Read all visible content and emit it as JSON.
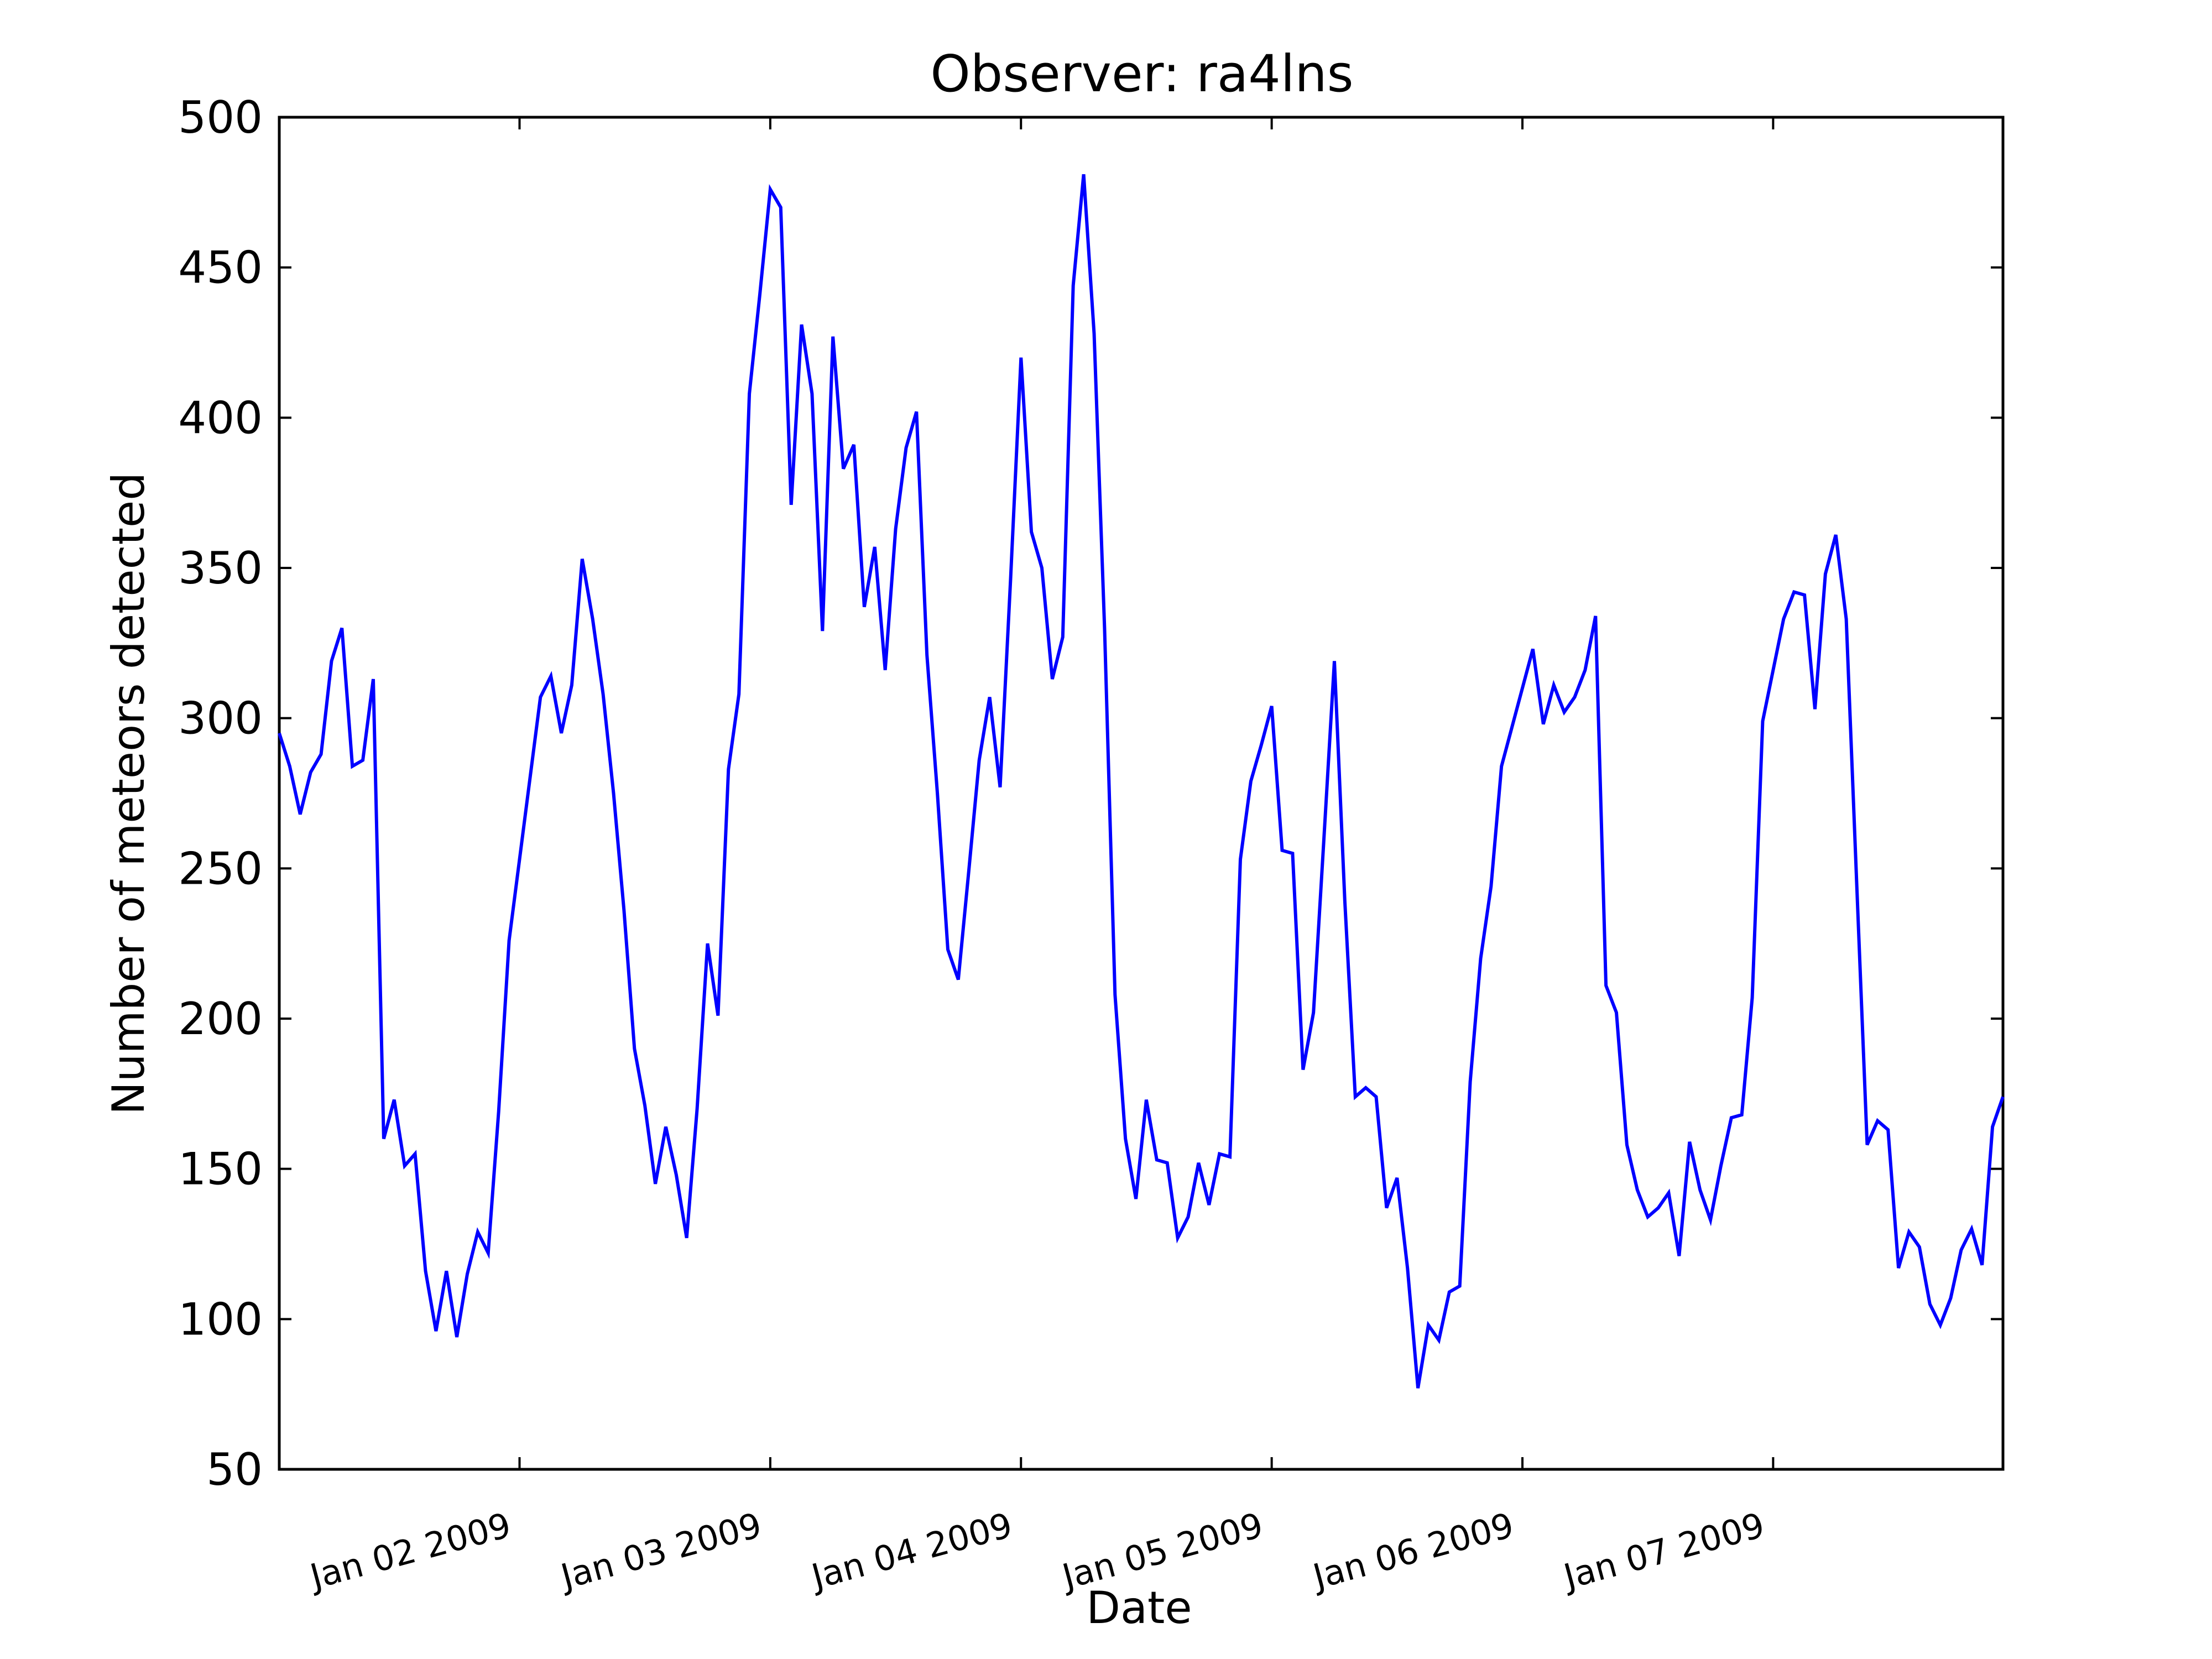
{
  "chart_data": {
    "type": "line",
    "title": "Observer: ra4lns",
    "xlabel": "Date",
    "ylabel": "Number of meteors detected",
    "ylim": [
      50,
      500
    ],
    "xlim": [
      "2009-01-01T01:00",
      "2009-01-07T22:00"
    ],
    "yticks": [
      50,
      100,
      150,
      200,
      250,
      300,
      350,
      400,
      450,
      500
    ],
    "xticks": [
      {
        "date": "2009-01-02",
        "label": "Jan 02 2009"
      },
      {
        "date": "2009-01-03",
        "label": "Jan 03 2009"
      },
      {
        "date": "2009-01-04",
        "label": "Jan 04 2009"
      },
      {
        "date": "2009-01-05",
        "label": "Jan 05 2009"
      },
      {
        "date": "2009-01-06",
        "label": "Jan 06 2009"
      },
      {
        "date": "2009-01-07",
        "label": "Jan 07 2009"
      }
    ],
    "grid": false,
    "line_color": "#0000ff",
    "series": [
      {
        "x": [
          "2009-01-01T01:00",
          "2009-01-01T02:00",
          "2009-01-01T03:00",
          "2009-01-01T04:00",
          "2009-01-01T05:00",
          "2009-01-01T06:00",
          "2009-01-01T07:00",
          "2009-01-01T08:00",
          "2009-01-01T09:00",
          "2009-01-01T10:00",
          "2009-01-01T11:00",
          "2009-01-01T12:00",
          "2009-01-01T13:00",
          "2009-01-01T14:00",
          "2009-01-01T15:00",
          "2009-01-01T16:00",
          "2009-01-01T17:00",
          "2009-01-01T18:00",
          "2009-01-01T19:00",
          "2009-01-01T20:00",
          "2009-01-01T21:00",
          "2009-01-01T22:00",
          "2009-01-01T23:00",
          "2009-01-02T02:00",
          "2009-01-02T03:00",
          "2009-01-02T04:00",
          "2009-01-02T05:00",
          "2009-01-02T06:00",
          "2009-01-02T07:00",
          "2009-01-02T08:00",
          "2009-01-02T09:00",
          "2009-01-02T10:00",
          "2009-01-02T11:00",
          "2009-01-02T12:00",
          "2009-01-02T13:00",
          "2009-01-02T14:00",
          "2009-01-02T15:00",
          "2009-01-02T16:00",
          "2009-01-02T17:00",
          "2009-01-02T18:00",
          "2009-01-02T19:00",
          "2009-01-02T20:00",
          "2009-01-02T21:00",
          "2009-01-02T22:00",
          "2009-01-02T23:00",
          "2009-01-03T00:00",
          "2009-01-03T01:00",
          "2009-01-03T02:00",
          "2009-01-03T03:00",
          "2009-01-03T04:00",
          "2009-01-03T05:00",
          "2009-01-03T06:00",
          "2009-01-03T07:00",
          "2009-01-03T08:00",
          "2009-01-03T09:00",
          "2009-01-03T10:00",
          "2009-01-03T11:00",
          "2009-01-03T12:00",
          "2009-01-03T13:00",
          "2009-01-03T14:00",
          "2009-01-03T15:00",
          "2009-01-03T16:00",
          "2009-01-03T17:00",
          "2009-01-03T18:00",
          "2009-01-03T19:00",
          "2009-01-03T20:00",
          "2009-01-03T21:00",
          "2009-01-03T22:00",
          "2009-01-03T23:00",
          "2009-01-04T00:00",
          "2009-01-04T01:00",
          "2009-01-04T02:00",
          "2009-01-04T03:00",
          "2009-01-04T04:00",
          "2009-01-04T05:00",
          "2009-01-04T06:00",
          "2009-01-04T07:00",
          "2009-01-04T08:00",
          "2009-01-04T09:00",
          "2009-01-04T10:00",
          "2009-01-04T11:00",
          "2009-01-04T12:00",
          "2009-01-04T13:00",
          "2009-01-04T14:00",
          "2009-01-04T15:00",
          "2009-01-04T16:00",
          "2009-01-04T17:00",
          "2009-01-04T18:00",
          "2009-01-04T19:00",
          "2009-01-04T20:00",
          "2009-01-04T21:00",
          "2009-01-04T22:00",
          "2009-01-04T23:00",
          "2009-01-05T00:00",
          "2009-01-05T01:00",
          "2009-01-05T02:00",
          "2009-01-05T03:00",
          "2009-01-05T04:00",
          "2009-01-05T05:00",
          "2009-01-05T06:00",
          "2009-01-05T07:00",
          "2009-01-05T08:00",
          "2009-01-05T09:00",
          "2009-01-05T10:00",
          "2009-01-05T11:00",
          "2009-01-05T12:00",
          "2009-01-05T13:00",
          "2009-01-05T14:00",
          "2009-01-05T15:00",
          "2009-01-05T16:00",
          "2009-01-05T17:00",
          "2009-01-05T18:00",
          "2009-01-05T19:00",
          "2009-01-05T20:00",
          "2009-01-05T21:00",
          "2009-01-05T22:00",
          "2009-01-06T01:00",
          "2009-01-06T02:00",
          "2009-01-06T03:00",
          "2009-01-06T04:00",
          "2009-01-06T05:00",
          "2009-01-06T06:00",
          "2009-01-06T07:00",
          "2009-01-06T08:00",
          "2009-01-06T09:00",
          "2009-01-06T10:00",
          "2009-01-06T11:00",
          "2009-01-06T12:00",
          "2009-01-06T13:00",
          "2009-01-06T14:00",
          "2009-01-06T15:00",
          "2009-01-06T16:00",
          "2009-01-06T17:00",
          "2009-01-06T18:00",
          "2009-01-06T19:00",
          "2009-01-06T20:00",
          "2009-01-06T21:00",
          "2009-01-06T22:00",
          "2009-01-06T23:00",
          "2009-01-07T00:00",
          "2009-01-07T01:00",
          "2009-01-07T02:00",
          "2009-01-07T03:00",
          "2009-01-07T04:00",
          "2009-01-07T05:00",
          "2009-01-07T06:00",
          "2009-01-07T07:00",
          "2009-01-07T08:00",
          "2009-01-07T09:00",
          "2009-01-07T10:00",
          "2009-01-07T11:00",
          "2009-01-07T12:00",
          "2009-01-07T13:00",
          "2009-01-07T14:00",
          "2009-01-07T15:00",
          "2009-01-07T16:00",
          "2009-01-07T17:00",
          "2009-01-07T18:00",
          "2009-01-07T19:00",
          "2009-01-07T20:00",
          "2009-01-07T21:00",
          "2009-01-07T22:00"
        ],
        "values": [
          295,
          284,
          268,
          282,
          288,
          319,
          330,
          284,
          286,
          313,
          160,
          173,
          151,
          155,
          116,
          96,
          116,
          94,
          115,
          129,
          122,
          169,
          226,
          307,
          314,
          295,
          311,
          353,
          333,
          308,
          275,
          236,
          190,
          171,
          145,
          164,
          148,
          127,
          170,
          225,
          201,
          283,
          308,
          408,
          441,
          476,
          470,
          371,
          431,
          408,
          329,
          427,
          383,
          391,
          337,
          357,
          316,
          363,
          390,
          402,
          321,
          275,
          223,
          213,
          249,
          286,
          307,
          277,
          346,
          420,
          362,
          350,
          313,
          327,
          444,
          481,
          428,
          330,
          208,
          160,
          140,
          173,
          153,
          152,
          127,
          134,
          152,
          138,
          155,
          154,
          253,
          279,
          291,
          304,
          256,
          255,
          183,
          202,
          260,
          319,
          239,
          174,
          177,
          174,
          137,
          147,
          117,
          77,
          98,
          93,
          109,
          111,
          179,
          220,
          244,
          284,
          323,
          298,
          311,
          302,
          307,
          316,
          334,
          211,
          202,
          158,
          143,
          134,
          137,
          142,
          121,
          159,
          143,
          133,
          151,
          167,
          168,
          207,
          299,
          316,
          333,
          342,
          341,
          303,
          348,
          361,
          333,
          245,
          158,
          166,
          163,
          117,
          129,
          124,
          105,
          98,
          107,
          123,
          130,
          118,
          164,
          174
        ]
      }
    ]
  }
}
